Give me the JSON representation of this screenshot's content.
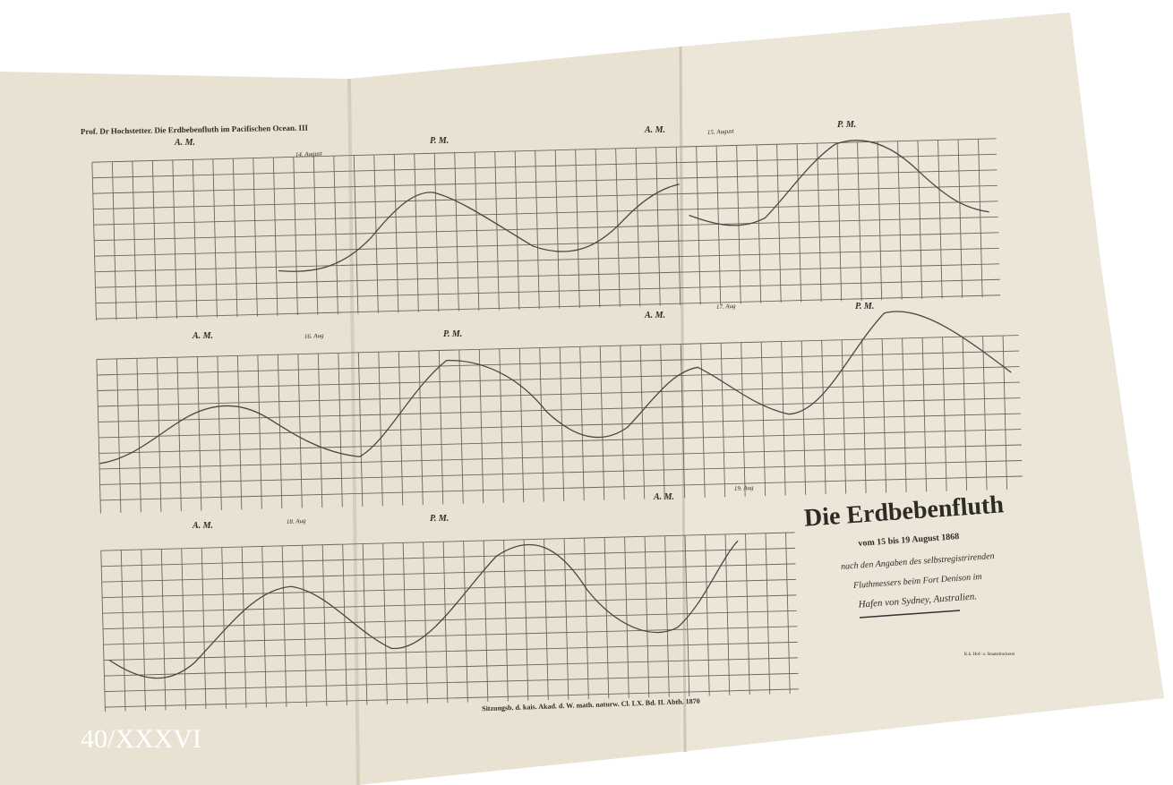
{
  "header": {
    "text": "Prof. Dr Hochstetter. Die Erdbebenfluth im Pacifischen Ocean. III"
  },
  "panels": [
    {
      "date": "14. August",
      "am": "A. M.",
      "pm": "P. M."
    },
    {
      "date": "15. August",
      "am": "A. M.",
      "pm": "P. M."
    },
    {
      "date": "16. Aug",
      "am": "A. M.",
      "pm": "P. M."
    },
    {
      "date": "17. Aug",
      "am": "A. M.",
      "pm": "P. M."
    },
    {
      "date": "18. Aug",
      "am": "A. M.",
      "pm": "P. M."
    },
    {
      "date": "19. Aug",
      "am": "A. M."
    }
  ],
  "legend": {
    "title": "Die Erdbebenfluth",
    "subtitle": "vom 15 bis 19 August 1868",
    "lines": [
      "nach den Angaben des selbstregistrirenden",
      "Fluthmessers beim Fort Denison im",
      "Hafen von Sydney, Australien."
    ],
    "printer": "K.k. Hof- u. Staatsdruckerei"
  },
  "footer": {
    "text": "Sitzungsb. d. kais. Akad. d. W. math. naturw. Cl. LX. Bd. II. Abth. 1870"
  },
  "caption": {
    "text": "40/XXXVI"
  }
}
